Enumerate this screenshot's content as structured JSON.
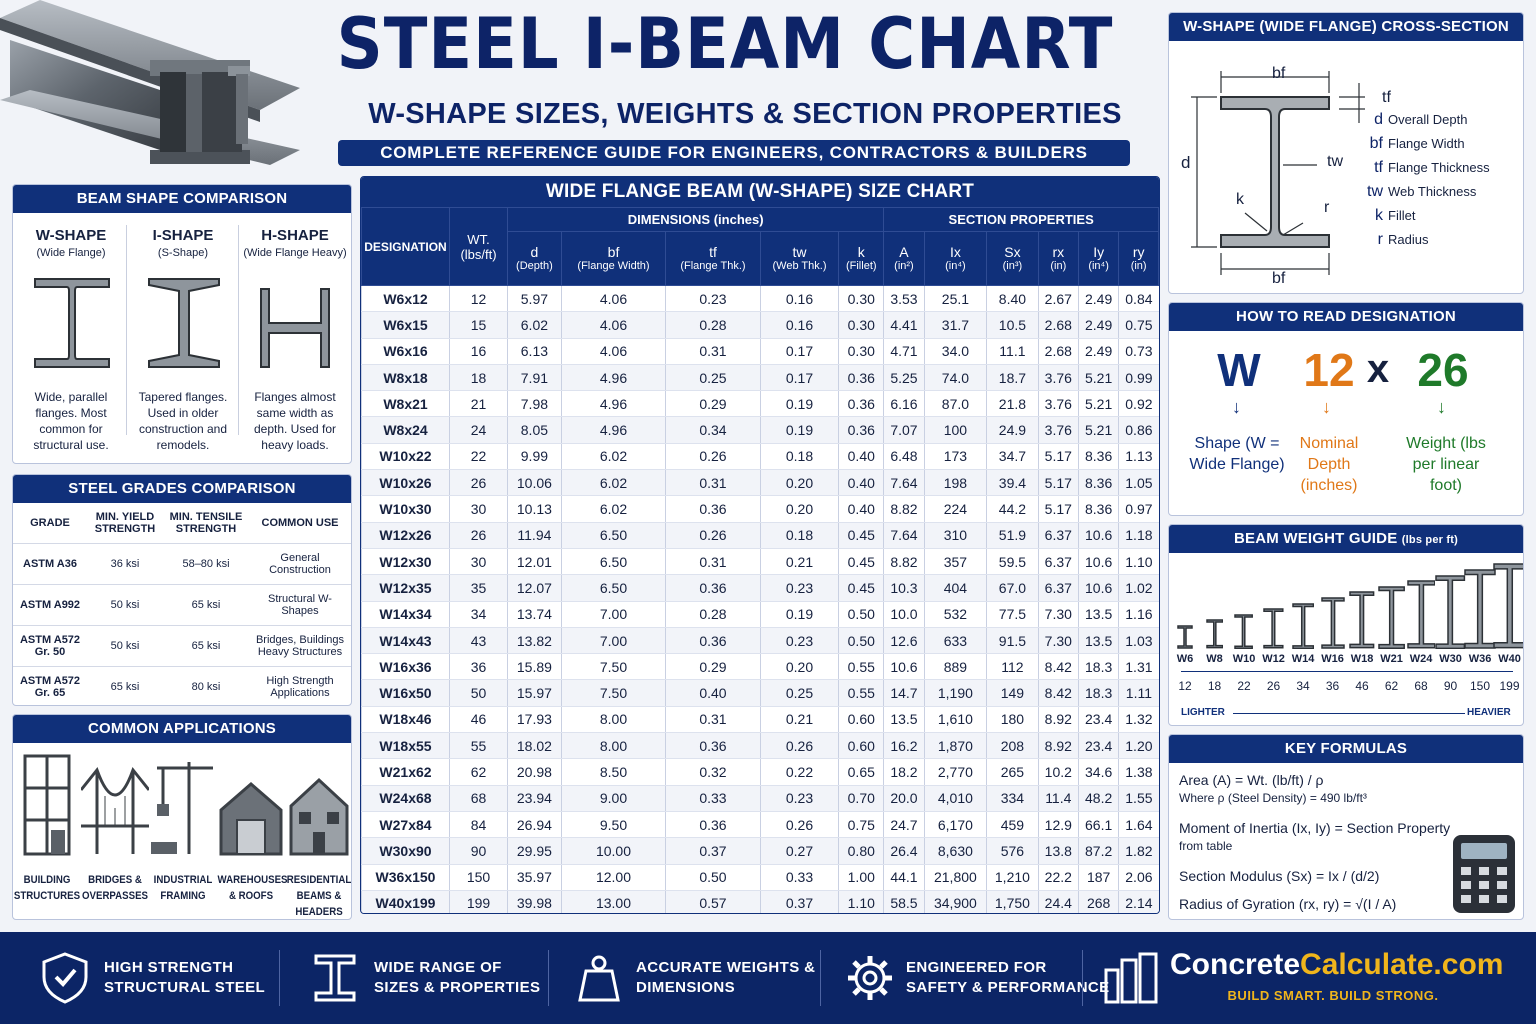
{
  "header": {
    "title": "STEEL I-BEAM CHART",
    "subtitle": "W-SHAPE SIZES, WEIGHTS & SECTION PROPERTIES",
    "tagline": "COMPLETE REFERENCE GUIDE FOR ENGINEERS, CONTRACTORS & BUILDERS"
  },
  "shapes": {
    "title": "BEAM SHAPE COMPARISON",
    "items": [
      {
        "name": "W-SHAPE",
        "sub": "(Wide Flange)",
        "desc": "Wide, parallel flanges. Most common for structural use."
      },
      {
        "name": "I-SHAPE",
        "sub": "(S-Shape)",
        "desc": "Tapered flanges. Used in older construction and remodels."
      },
      {
        "name": "H-SHAPE",
        "sub": "(Wide Flange Heavy)",
        "desc": "Flanges almost same width as depth. Used for heavy loads."
      }
    ]
  },
  "grades": {
    "title": "STEEL GRADES COMPARISON",
    "headers": [
      "GRADE",
      "MIN. YIELD STRENGTH",
      "MIN. TENSILE STRENGTH",
      "COMMON USE"
    ],
    "rows": [
      [
        "ASTM A36",
        "36 ksi",
        "58–80 ksi",
        "General Construction"
      ],
      [
        "ASTM A992",
        "50 ksi",
        "65 ksi",
        "Structural W-Shapes"
      ],
      [
        "ASTM A572 Gr. 50",
        "50 ksi",
        "65 ksi",
        "Bridges, Buildings Heavy Structures"
      ],
      [
        "ASTM A572 Gr. 65",
        "65 ksi",
        "80 ksi",
        "High Strength Applications"
      ]
    ]
  },
  "applications": {
    "title": "COMMON APPLICATIONS",
    "items": [
      "BUILDING STRUCTURES",
      "BRIDGES & OVERPASSES",
      "INDUSTRIAL FRAMING",
      "WAREHOUSES & ROOFS",
      "RESIDENTIAL BEAMS & HEADERS"
    ]
  },
  "size_chart": {
    "title": "WIDE FLANGE BEAM (W-SHAPE) SIZE CHART",
    "group_dimensions": "DIMENSIONS (inches)",
    "group_properties": "SECTION PROPERTIES",
    "col_designation": "DESIGNATION",
    "col_weight": "WT. (lbs/ft)",
    "columns": [
      {
        "sym": "d",
        "desc": "(Depth)"
      },
      {
        "sym": "bf",
        "desc": "(Flange Width)"
      },
      {
        "sym": "tf",
        "desc": "(Flange Thk.)"
      },
      {
        "sym": "tw",
        "desc": "(Web Thk.)"
      },
      {
        "sym": "k",
        "desc": "(Fillet)"
      },
      {
        "sym": "A",
        "desc": "(in²)"
      },
      {
        "sym": "Ix",
        "desc": "(in⁴)"
      },
      {
        "sym": "Sx",
        "desc": "(in³)"
      },
      {
        "sym": "rx",
        "desc": "(in)"
      },
      {
        "sym": "Iy",
        "desc": "(in⁴)"
      },
      {
        "sym": "ry",
        "desc": "(in)"
      }
    ],
    "rows": [
      [
        "W6x12",
        "12",
        "5.97",
        "4.06",
        "0.23",
        "0.16",
        "0.30",
        "3.53",
        "25.1",
        "8.40",
        "2.67",
        "2.49",
        "0.84"
      ],
      [
        "W6x15",
        "15",
        "6.02",
        "4.06",
        "0.28",
        "0.16",
        "0.30",
        "4.41",
        "31.7",
        "10.5",
        "2.68",
        "2.49",
        "0.75"
      ],
      [
        "W6x16",
        "16",
        "6.13",
        "4.06",
        "0.31",
        "0.17",
        "0.30",
        "4.71",
        "34.0",
        "11.1",
        "2.68",
        "2.49",
        "0.73"
      ],
      [
        "W8x18",
        "18",
        "7.91",
        "4.96",
        "0.25",
        "0.17",
        "0.36",
        "5.25",
        "74.0",
        "18.7",
        "3.76",
        "5.21",
        "0.99"
      ],
      [
        "W8x21",
        "21",
        "7.98",
        "4.96",
        "0.29",
        "0.19",
        "0.36",
        "6.16",
        "87.0",
        "21.8",
        "3.76",
        "5.21",
        "0.92"
      ],
      [
        "W8x24",
        "24",
        "8.05",
        "4.96",
        "0.34",
        "0.19",
        "0.36",
        "7.07",
        "100",
        "24.9",
        "3.76",
        "5.21",
        "0.86"
      ],
      [
        "W10x22",
        "22",
        "9.99",
        "6.02",
        "0.26",
        "0.18",
        "0.40",
        "6.48",
        "173",
        "34.7",
        "5.17",
        "8.36",
        "1.13"
      ],
      [
        "W10x26",
        "26",
        "10.06",
        "6.02",
        "0.31",
        "0.20",
        "0.40",
        "7.64",
        "198",
        "39.4",
        "5.17",
        "8.36",
        "1.05"
      ],
      [
        "W10x30",
        "30",
        "10.13",
        "6.02",
        "0.36",
        "0.20",
        "0.40",
        "8.82",
        "224",
        "44.2",
        "5.17",
        "8.36",
        "0.97"
      ],
      [
        "W12x26",
        "26",
        "11.94",
        "6.50",
        "0.26",
        "0.18",
        "0.45",
        "7.64",
        "310",
        "51.9",
        "6.37",
        "10.6",
        "1.18"
      ],
      [
        "W12x30",
        "30",
        "12.01",
        "6.50",
        "0.31",
        "0.21",
        "0.45",
        "8.82",
        "357",
        "59.5",
        "6.37",
        "10.6",
        "1.10"
      ],
      [
        "W12x35",
        "35",
        "12.07",
        "6.50",
        "0.36",
        "0.23",
        "0.45",
        "10.3",
        "404",
        "67.0",
        "6.37",
        "10.6",
        "1.02"
      ],
      [
        "W14x34",
        "34",
        "13.74",
        "7.00",
        "0.28",
        "0.19",
        "0.50",
        "10.0",
        "532",
        "77.5",
        "7.30",
        "13.5",
        "1.16"
      ],
      [
        "W14x43",
        "43",
        "13.82",
        "7.00",
        "0.36",
        "0.23",
        "0.50",
        "12.6",
        "633",
        "91.5",
        "7.30",
        "13.5",
        "1.03"
      ],
      [
        "W16x36",
        "36",
        "15.89",
        "7.50",
        "0.29",
        "0.20",
        "0.55",
        "10.6",
        "889",
        "112",
        "8.42",
        "18.3",
        "1.31"
      ],
      [
        "W16x50",
        "50",
        "15.97",
        "7.50",
        "0.40",
        "0.25",
        "0.55",
        "14.7",
        "1,190",
        "149",
        "8.42",
        "18.3",
        "1.11"
      ],
      [
        "W18x46",
        "46",
        "17.93",
        "8.00",
        "0.31",
        "0.21",
        "0.60",
        "13.5",
        "1,610",
        "180",
        "8.92",
        "23.4",
        "1.32"
      ],
      [
        "W18x55",
        "55",
        "18.02",
        "8.00",
        "0.36",
        "0.26",
        "0.60",
        "16.2",
        "1,870",
        "208",
        "8.92",
        "23.4",
        "1.20"
      ],
      [
        "W21x62",
        "62",
        "20.98",
        "8.50",
        "0.32",
        "0.22",
        "0.65",
        "18.2",
        "2,770",
        "265",
        "10.2",
        "34.6",
        "1.38"
      ],
      [
        "W24x68",
        "68",
        "23.94",
        "9.00",
        "0.33",
        "0.23",
        "0.70",
        "20.0",
        "4,010",
        "334",
        "11.4",
        "48.2",
        "1.55"
      ],
      [
        "W27x84",
        "84",
        "26.94",
        "9.50",
        "0.36",
        "0.26",
        "0.75",
        "24.7",
        "6,170",
        "459",
        "12.9",
        "66.1",
        "1.64"
      ],
      [
        "W30x90",
        "90",
        "29.95",
        "10.00",
        "0.37",
        "0.27",
        "0.80",
        "26.4",
        "8,630",
        "576",
        "13.8",
        "87.2",
        "1.82"
      ],
      [
        "W36x150",
        "150",
        "35.97",
        "12.00",
        "0.50",
        "0.33",
        "1.00",
        "44.1",
        "21,800",
        "1,210",
        "22.2",
        "187",
        "2.06"
      ],
      [
        "W40x199",
        "199",
        "39.98",
        "13.00",
        "0.57",
        "0.37",
        "1.10",
        "58.5",
        "34,900",
        "1,750",
        "24.4",
        "268",
        "2.14"
      ]
    ]
  },
  "cross_section": {
    "title": "W-SHAPE (WIDE FLANGE) CROSS-SECTION",
    "diagram_labels": {
      "bf_top": "bf",
      "bf_bottom": "bf",
      "tf": "tf",
      "d": "d",
      "tw": "tw",
      "k": "k",
      "r": "r"
    },
    "legend": [
      {
        "sym": "d",
        "label": "Overall Depth"
      },
      {
        "sym": "bf",
        "label": "Flange Width"
      },
      {
        "sym": "tf",
        "label": "Flange Thickness"
      },
      {
        "sym": "tw",
        "label": "Web Thickness"
      },
      {
        "sym": "k",
        "label": "Fillet"
      },
      {
        "sym": "r",
        "label": "Radius"
      }
    ]
  },
  "designation": {
    "title": "HOW TO READ DESIGNATION",
    "w": "W",
    "depth": "12",
    "x": "x",
    "weight": "26",
    "w_desc": "Shape (W = Wide Flange)",
    "depth_desc": "Nominal Depth (inches)",
    "weight_desc": "Weight (lbs per linear foot)",
    "colors": {
      "w": "#10307a",
      "depth": "#e07818",
      "weight": "#1f7a2a"
    }
  },
  "weight_guide": {
    "title": "BEAM WEIGHT GUIDE",
    "title_unit": "(lbs per ft)",
    "sizes": [
      "W6",
      "W8",
      "W10",
      "W12",
      "W14",
      "W16",
      "W18",
      "W21",
      "W24",
      "W30",
      "W36",
      "W40"
    ],
    "weights": [
      "12",
      "18",
      "22",
      "26",
      "34",
      "36",
      "46",
      "62",
      "68",
      "90",
      "150",
      "199"
    ],
    "lighter": "LIGHTER",
    "heavier": "HEAVIER"
  },
  "formulas": {
    "title": "KEY FORMULAS",
    "items": [
      {
        "main": "Area (A) = Wt. (lb/ft) / ρ",
        "sub": "Where ρ (Steel Density) = 490 lb/ft³"
      },
      {
        "main": "Moment of Inertia (Ix, Iy) = Section Property",
        "sub": "from table"
      },
      {
        "main": "Section Modulus (Sx) = Ix / (d/2)",
        "sub": ""
      },
      {
        "main": "Radius of Gyration (rx, ry) = √(I / A)",
        "sub": ""
      }
    ]
  },
  "footer": {
    "items": [
      {
        "icon": "shield-icon",
        "line1": "HIGH STRENGTH",
        "line2": "STRUCTURAL STEEL"
      },
      {
        "icon": "i-beam-icon",
        "line1": "WIDE RANGE OF",
        "line2": "SIZES & PROPERTIES"
      },
      {
        "icon": "weight-icon",
        "line1": "ACCURATE WEIGHTS &",
        "line2": "DIMENSIONS"
      },
      {
        "icon": "gear-icon",
        "line1": "ENGINEERED FOR",
        "line2": "SAFETY & PERFORMANCE"
      }
    ],
    "brand_a": "Concrete",
    "brand_b": "Calculate.com",
    "brand_tag": "BUILD SMART. BUILD STRONG.",
    "brand_color": "#f0b51c"
  }
}
